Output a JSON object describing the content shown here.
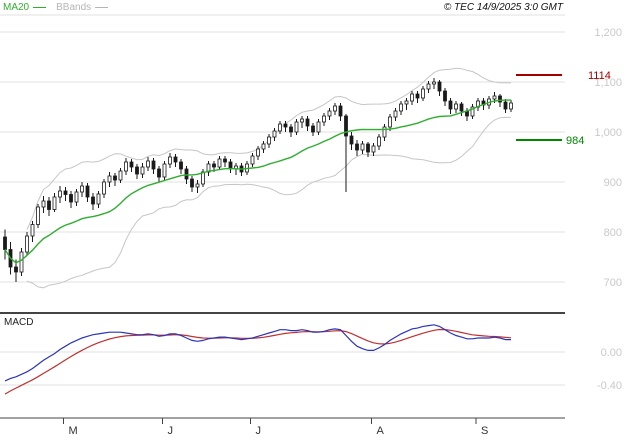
{
  "header": {
    "legend": [
      {
        "label": "MA20",
        "color": "#2fae2f"
      },
      {
        "label": "BBands",
        "color": "#b5b5b5"
      }
    ],
    "copyright": "© TEC 14/9/2025 3:0 GMT"
  },
  "macd_panel": {
    "label": "MACD"
  },
  "colors": {
    "grid": "#e0e0e0",
    "axis_label": "#c9c9c9",
    "candle": "#1a1a1a",
    "ma20": "#2fae2f",
    "bbands": "#c6c6c6",
    "macd_line": "#2b35b8",
    "macd_signal": "#c03030",
    "month_label": "#333333",
    "frame": "#444444"
  },
  "chart_data": {
    "type": "candlestick",
    "title": "",
    "x_axis": {
      "month_labels": [
        "M",
        "J",
        "J",
        "A",
        "S"
      ],
      "month_start_indices": [
        11,
        29,
        45,
        67,
        86
      ]
    },
    "y_axis_main": {
      "tick_values": [
        1200,
        1100,
        1000,
        900,
        800,
        700
      ],
      "tick_labels": [
        "1,200",
        "1,100",
        "1,000",
        "900",
        "800",
        "700"
      ],
      "range": [
        640,
        1234
      ],
      "grid": true
    },
    "y_axis_macd": {
      "tick_values": [
        0,
        -0.4
      ],
      "tick_labels": [
        "0.00",
        "-0.40"
      ],
      "range": [
        -0.8,
        0.44
      ],
      "grid": true
    },
    "levels": [
      {
        "label": "1114",
        "value": 1114,
        "color": "#a40000",
        "kind": "resistance"
      },
      {
        "label": "984",
        "value": 984,
        "color": "#008800",
        "kind": "support"
      }
    ],
    "overlays": {
      "ma_period": 20,
      "bollinger_period": 20,
      "bollinger_stddev": 2
    },
    "candles_ohlc": [
      [
        790,
        805,
        745,
        765
      ],
      [
        765,
        780,
        715,
        730
      ],
      [
        730,
        745,
        700,
        720
      ],
      [
        720,
        768,
        712,
        760
      ],
      [
        760,
        800,
        752,
        792
      ],
      [
        792,
        822,
        780,
        815
      ],
      [
        815,
        856,
        808,
        850
      ],
      [
        850,
        872,
        838,
        862
      ],
      [
        862,
        870,
        832,
        845
      ],
      [
        845,
        878,
        840,
        870
      ],
      [
        870,
        892,
        858,
        882
      ],
      [
        882,
        890,
        862,
        875
      ],
      [
        875,
        882,
        848,
        860
      ],
      [
        860,
        886,
        852,
        880
      ],
      [
        880,
        900,
        870,
        892
      ],
      [
        892,
        898,
        860,
        870
      ],
      [
        870,
        878,
        844,
        856
      ],
      [
        856,
        882,
        848,
        876
      ],
      [
        876,
        906,
        868,
        900
      ],
      [
        900,
        920,
        890,
        912
      ],
      [
        912,
        918,
        892,
        904
      ],
      [
        904,
        928,
        898,
        922
      ],
      [
        922,
        948,
        914,
        940
      ],
      [
        940,
        946,
        920,
        930
      ],
      [
        930,
        936,
        906,
        916
      ],
      [
        916,
        938,
        908,
        930
      ],
      [
        930,
        950,
        922,
        942
      ],
      [
        942,
        948,
        916,
        926
      ],
      [
        926,
        932,
        900,
        910
      ],
      [
        910,
        942,
        904,
        936
      ],
      [
        936,
        958,
        928,
        950
      ],
      [
        950,
        956,
        930,
        940
      ],
      [
        940,
        946,
        916,
        926
      ],
      [
        926,
        932,
        896,
        906
      ],
      [
        906,
        912,
        880,
        890
      ],
      [
        890,
        904,
        878,
        896
      ],
      [
        896,
        926,
        890,
        920
      ],
      [
        920,
        942,
        912,
        936
      ],
      [
        936,
        942,
        920,
        930
      ],
      [
        930,
        952,
        924,
        946
      ],
      [
        946,
        952,
        930,
        940
      ],
      [
        940,
        946,
        918,
        926
      ],
      [
        926,
        938,
        914,
        932
      ],
      [
        932,
        938,
        912,
        920
      ],
      [
        920,
        942,
        914,
        936
      ],
      [
        936,
        958,
        930,
        952
      ],
      [
        952,
        972,
        944,
        966
      ],
      [
        966,
        982,
        958,
        976
      ],
      [
        976,
        996,
        968,
        990
      ],
      [
        990,
        1008,
        982,
        1002
      ],
      [
        1002,
        1022,
        996,
        1016
      ],
      [
        1016,
        1022,
        1000,
        1010
      ],
      [
        1010,
        1016,
        990,
        1000
      ],
      [
        1000,
        1026,
        994,
        1020
      ],
      [
        1020,
        1032,
        1008,
        1026
      ],
      [
        1026,
        1032,
        1002,
        1012
      ],
      [
        1012,
        1018,
        992,
        1000
      ],
      [
        1000,
        1026,
        994,
        1020
      ],
      [
        1020,
        1038,
        1012,
        1032
      ],
      [
        1032,
        1048,
        1024,
        1042
      ],
      [
        1042,
        1058,
        1034,
        1052
      ],
      [
        1052,
        1058,
        1022,
        1032
      ],
      [
        1032,
        1036,
        880,
        992
      ],
      [
        992,
        1000,
        964,
        976
      ],
      [
        976,
        984,
        952,
        964
      ],
      [
        964,
        982,
        956,
        976
      ],
      [
        976,
        980,
        950,
        960
      ],
      [
        960,
        978,
        952,
        972
      ],
      [
        972,
        996,
        964,
        990
      ],
      [
        990,
        1016,
        982,
        1010
      ],
      [
        1010,
        1036,
        1002,
        1030
      ],
      [
        1030,
        1048,
        1022,
        1042
      ],
      [
        1042,
        1062,
        1034,
        1056
      ],
      [
        1056,
        1068,
        1044,
        1062
      ],
      [
        1062,
        1082,
        1054,
        1076
      ],
      [
        1076,
        1082,
        1058,
        1068
      ],
      [
        1068,
        1092,
        1062,
        1086
      ],
      [
        1086,
        1102,
        1078,
        1096
      ],
      [
        1096,
        1108,
        1086,
        1100
      ],
      [
        1100,
        1104,
        1072,
        1082
      ],
      [
        1082,
        1088,
        1052,
        1062
      ],
      [
        1062,
        1068,
        1036,
        1046
      ],
      [
        1046,
        1062,
        1038,
        1056
      ],
      [
        1056,
        1060,
        1032,
        1042
      ],
      [
        1042,
        1048,
        1022,
        1032
      ],
      [
        1032,
        1056,
        1026,
        1050
      ],
      [
        1050,
        1068,
        1042,
        1062
      ],
      [
        1062,
        1068,
        1044,
        1054
      ],
      [
        1054,
        1072,
        1046,
        1066
      ],
      [
        1066,
        1080,
        1058,
        1072
      ],
      [
        1072,
        1076,
        1050,
        1060
      ],
      [
        1060,
        1066,
        1038,
        1046
      ],
      [
        1046,
        1064,
        1040,
        1058
      ]
    ],
    "macd": {
      "line": [
        -0.35,
        -0.32,
        -0.3,
        -0.27,
        -0.24,
        -0.2,
        -0.15,
        -0.1,
        -0.06,
        -0.02,
        0.03,
        0.07,
        0.11,
        0.14,
        0.17,
        0.19,
        0.21,
        0.22,
        0.23,
        0.24,
        0.24,
        0.24,
        0.23,
        0.22,
        0.21,
        0.21,
        0.22,
        0.21,
        0.19,
        0.2,
        0.22,
        0.22,
        0.2,
        0.17,
        0.14,
        0.13,
        0.14,
        0.16,
        0.17,
        0.18,
        0.18,
        0.17,
        0.16,
        0.15,
        0.16,
        0.17,
        0.19,
        0.21,
        0.23,
        0.25,
        0.27,
        0.27,
        0.26,
        0.26,
        0.27,
        0.26,
        0.24,
        0.24,
        0.25,
        0.27,
        0.28,
        0.27,
        0.2,
        0.13,
        0.07,
        0.04,
        0.02,
        0.02,
        0.05,
        0.09,
        0.14,
        0.18,
        0.22,
        0.25,
        0.28,
        0.29,
        0.31,
        0.32,
        0.33,
        0.31,
        0.27,
        0.23,
        0.2,
        0.18,
        0.16,
        0.16,
        0.17,
        0.17,
        0.17,
        0.18,
        0.17,
        0.15,
        0.15
      ],
      "signal_period": 9,
      "signal_seed_offset": -0.2
    }
  }
}
